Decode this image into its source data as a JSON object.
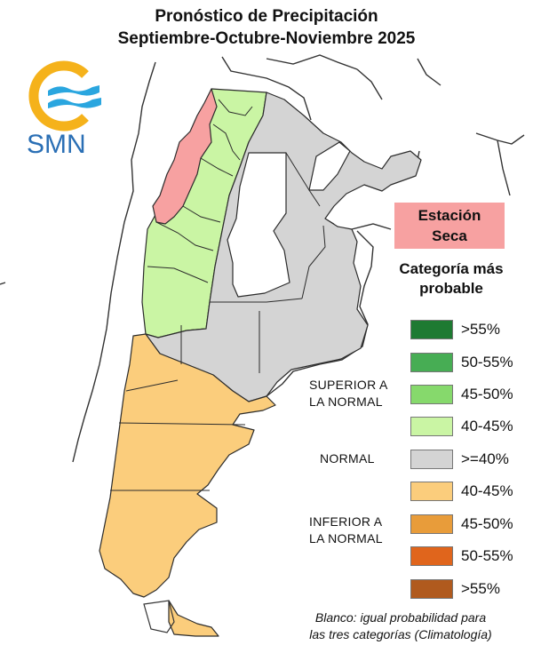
{
  "title": {
    "line1": "Pronóstico de Precipitación",
    "line2": "Septiembre-Octubre-Noviembre 2025"
  },
  "logo": {
    "text": "SMN",
    "icon": "smn-logo-icon",
    "ring_color": "#f5b21b",
    "wave_color": "#2aa6df",
    "text_color": "#2a6fb5"
  },
  "dry_season": {
    "label_line1": "Estación",
    "label_line2": "Seca",
    "color": "#f7a1a1"
  },
  "legend": {
    "heading_line1": "Categoría más",
    "heading_line2": "probable",
    "categories": {
      "superior": {
        "line1": "SUPERIOR A",
        "line2": "LA NORMAL"
      },
      "normal": {
        "line1": "NORMAL"
      },
      "inferior": {
        "line1": "INFERIOR A",
        "line2": "LA NORMAL"
      }
    },
    "items": [
      {
        "label": ">55%",
        "color": "#1e7a32"
      },
      {
        "label": "50-55%",
        "color": "#47ad54"
      },
      {
        "label": "45-50%",
        "color": "#86d96c"
      },
      {
        "label": "40-45%",
        "color": "#caf5a4"
      },
      {
        "label": ">=40%",
        "color": "#d4d4d4"
      },
      {
        "label": "40-45%",
        "color": "#fbcd7c"
      },
      {
        "label": "45-50%",
        "color": "#e89c3a"
      },
      {
        "label": "50-55%",
        "color": "#e0651c"
      },
      {
        "label": ">55%",
        "color": "#b05a1e"
      }
    ]
  },
  "note": {
    "line1": "Blanco: igual probabilidad para",
    "line2": "las tres categorías (Climatología)"
  }
}
